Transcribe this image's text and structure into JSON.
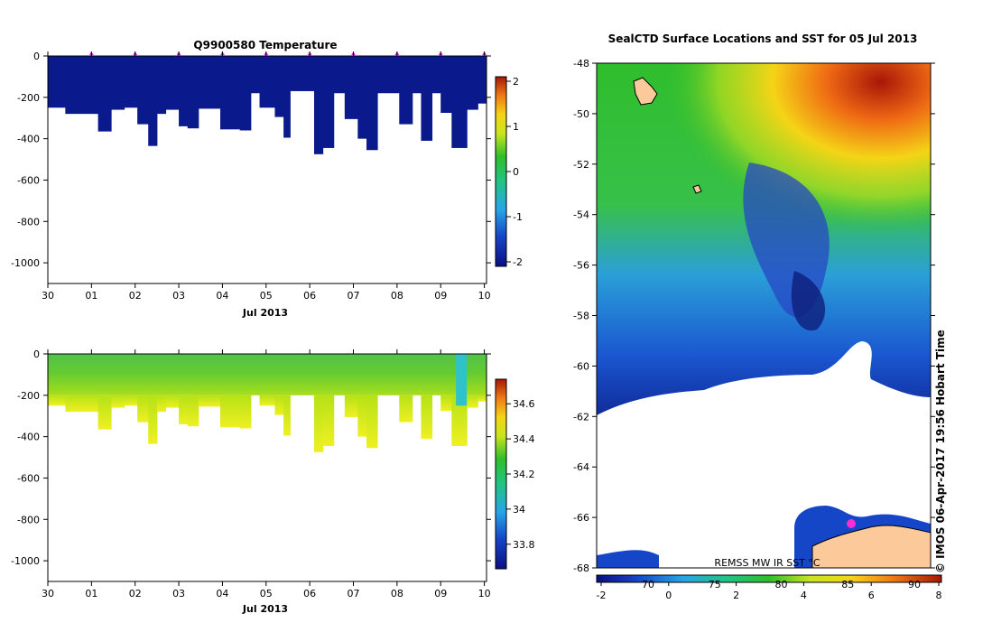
{
  "chart_data": [
    {
      "type": "heatmap",
      "title": "Q9900580  Temperature",
      "xlabel": "Jul 2013",
      "x_tick_labels": [
        "30",
        "01",
        "02",
        "03",
        "04",
        "05",
        "06",
        "07",
        "08",
        "09",
        "10"
      ],
      "y_tick_values": [
        0,
        -200,
        -400,
        -600,
        -800,
        -1000
      ],
      "ylim": [
        -1100,
        0
      ],
      "xlim_days": [
        0,
        10.05
      ],
      "colorbar": {
        "ticks": [
          2,
          1,
          0,
          -1,
          -2
        ],
        "range": [
          -2.1,
          2.1
        ]
      },
      "profile_marker_days": [
        1,
        2,
        3,
        4,
        5,
        6,
        7,
        8,
        9,
        10
      ],
      "profiles": [
        {
          "day": 0.0,
          "bottom": -250
        },
        {
          "day": 0.4,
          "bottom": -280
        },
        {
          "day": 1.15,
          "bottom": -365
        },
        {
          "day": 1.45,
          "bottom": -260
        },
        {
          "day": 1.75,
          "bottom": -250
        },
        {
          "day": 2.05,
          "bottom": -330
        },
        {
          "day": 2.3,
          "bottom": -435
        },
        {
          "day": 2.5,
          "bottom": -280
        },
        {
          "day": 2.7,
          "bottom": -260
        },
        {
          "day": 3.0,
          "bottom": -340
        },
        {
          "day": 3.2,
          "bottom": -350
        },
        {
          "day": 3.45,
          "bottom": -255
        },
        {
          "day": 3.95,
          "bottom": -355
        },
        {
          "day": 4.4,
          "bottom": -360
        },
        {
          "day": 4.65,
          "bottom": -180
        },
        {
          "day": 4.85,
          "bottom": -250
        },
        {
          "day": 5.2,
          "bottom": -295
        },
        {
          "day": 5.4,
          "bottom": -395
        },
        {
          "day": 5.55,
          "bottom": -170
        },
        {
          "day": 6.1,
          "bottom": -475
        },
        {
          "day": 6.3,
          "bottom": -445
        },
        {
          "day": 6.55,
          "bottom": -180
        },
        {
          "day": 6.8,
          "bottom": -305
        },
        {
          "day": 7.1,
          "bottom": -400
        },
        {
          "day": 7.3,
          "bottom": -455
        },
        {
          "day": 7.55,
          "bottom": -180
        },
        {
          "day": 7.8,
          "bottom": -180
        },
        {
          "day": 8.05,
          "bottom": -330
        },
        {
          "day": 8.35,
          "bottom": -180
        },
        {
          "day": 8.55,
          "bottom": -410
        },
        {
          "day": 8.8,
          "bottom": -180
        },
        {
          "day": 9.0,
          "bottom": -275
        },
        {
          "day": 9.25,
          "bottom": -445
        },
        {
          "day": 9.6,
          "bottom": -260
        },
        {
          "day": 9.85,
          "bottom": -230
        }
      ]
    },
    {
      "type": "heatmap",
      "title": "",
      "xlabel": "Jul 2013",
      "x_tick_labels": [
        "30",
        "01",
        "02",
        "03",
        "04",
        "05",
        "06",
        "07",
        "08",
        "09",
        "10"
      ],
      "y_tick_values": [
        0,
        -200,
        -400,
        -600,
        -800,
        -1000
      ],
      "ylim": [
        -1100,
        0
      ],
      "xlim_days": [
        0,
        10.05
      ],
      "colorbar": {
        "ticks": [
          34.6,
          34.4,
          34.2,
          34,
          33.8
        ],
        "range": [
          33.66,
          34.74
        ]
      },
      "tick_labels_text": [
        "34.6",
        "34.4",
        "34.2",
        "34",
        "33.8"
      ]
    },
    {
      "type": "heatmap",
      "title": "SealCTD Surface Locations and SST for 05 Jul 2013",
      "y_tick_labels": [
        "-48",
        "-50",
        "-52",
        "-54",
        "-56",
        "-58",
        "-60",
        "-62",
        "-64",
        "-66",
        "-68"
      ],
      "ylim": [
        -68,
        -48
      ],
      "colorbar": {
        "c_ticks": [
          "-2",
          "0",
          "2",
          "4",
          "6",
          "8"
        ],
        "f_ticks": [
          "70",
          "75",
          "80",
          "85",
          "90"
        ]
      },
      "source_label": "REMSS MW IR SST °C",
      "credit": "© IMOS 06-Apr-2017 19:56 Hobart Time"
    }
  ]
}
